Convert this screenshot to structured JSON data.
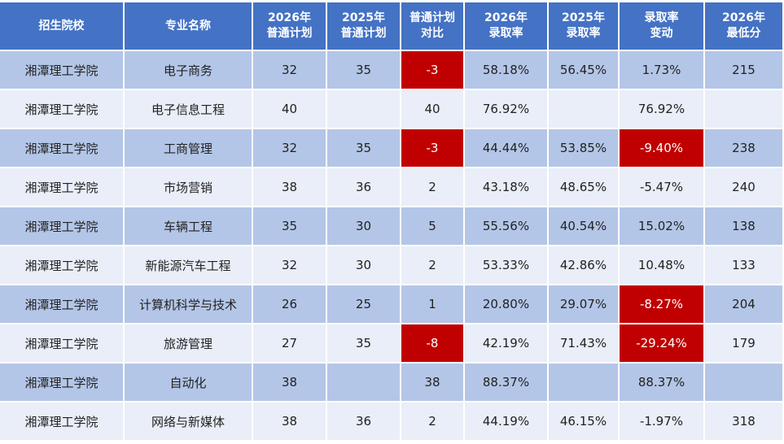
{
  "table": {
    "headers": [
      "招生院校",
      "专业名称",
      "2026年\n普通计划",
      "2025年\n普通计划",
      "普通计划\n对比",
      "2026年\n录取率",
      "2025年\n录取率",
      "录取率\n变动",
      "2026年\n最低分"
    ],
    "rows": [
      [
        "湘潭理工学院",
        "电子商务",
        "32",
        "35",
        "-3",
        "58.18%",
        "56.45%",
        "1.73%",
        "215"
      ],
      [
        "湘潭理工学院",
        "电子信息工程",
        "40",
        "",
        "40",
        "76.92%",
        "",
        "76.92%",
        ""
      ],
      [
        "湘潭理工学院",
        "工商管理",
        "32",
        "35",
        "-3",
        "44.44%",
        "53.85%",
        "-9.40%",
        "238"
      ],
      [
        "湘潭理工学院",
        "市场营销",
        "38",
        "36",
        "2",
        "43.18%",
        "48.65%",
        "-5.47%",
        "240"
      ],
      [
        "湘潭理工学院",
        "车辆工程",
        "35",
        "30",
        "5",
        "55.56%",
        "40.54%",
        "15.02%",
        "138"
      ],
      [
        "湘潭理工学院",
        "新能源汽车工程",
        "32",
        "30",
        "2",
        "53.33%",
        "42.86%",
        "10.48%",
        "133"
      ],
      [
        "湘潭理工学院",
        "计算机科学与技术",
        "26",
        "25",
        "1",
        "20.80%",
        "29.07%",
        "-8.27%",
        "204"
      ],
      [
        "湘潭理工学院",
        "旅游管理",
        "27",
        "35",
        "-8",
        "42.19%",
        "71.43%",
        "-29.24%",
        "179"
      ],
      [
        "湘潭理工学院",
        "自动化",
        "38",
        "",
        "38",
        "88.37%",
        "",
        "88.37%",
        ""
      ],
      [
        "湘潭理工学院",
        "网络与新媒体",
        "38",
        "36",
        "2",
        "44.19%",
        "46.15%",
        "-1.97%",
        "318"
      ]
    ],
    "highlighted": [
      [
        0,
        4
      ],
      [
        2,
        4
      ],
      [
        2,
        7
      ],
      [
        6,
        7
      ],
      [
        7,
        4
      ],
      [
        7,
        7
      ]
    ]
  },
  "colors": {
    "header": "#4472c4",
    "row_dark": "#b4c6e7",
    "row_light": "#e9eef8",
    "highlight": "#c00000"
  }
}
